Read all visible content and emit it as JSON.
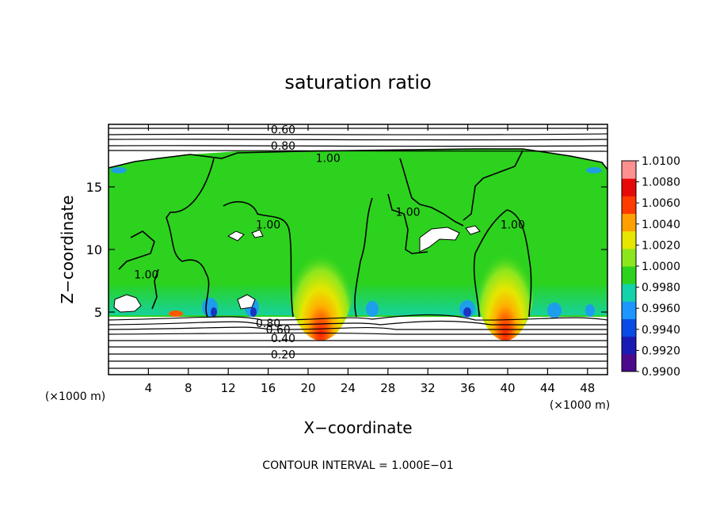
{
  "chart_data": {
    "type": "heatmap",
    "title": "saturation ratio",
    "xlabel": "X−coordinate",
    "ylabel": "Z−coordinate",
    "x_unit_left": "(×1000 m)",
    "x_unit_right": "(×1000 m)",
    "footer": "CONTOUR INTERVAL = 1.000E−01",
    "xlim": [
      0,
      50
    ],
    "ylim": [
      0,
      20
    ],
    "x_ticks": [
      4,
      8,
      12,
      16,
      20,
      24,
      28,
      32,
      36,
      40,
      44,
      48
    ],
    "x_tick_labels": [
      "4",
      "8",
      "12",
      "16",
      "20",
      "24",
      "28",
      "32",
      "36",
      "40",
      "44",
      "48"
    ],
    "y_ticks": [
      5,
      10,
      15
    ],
    "y_tick_labels": [
      "5",
      "10",
      "15"
    ],
    "colorbar": {
      "min": 0.99,
      "max": 1.01,
      "labels": [
        "1.0100",
        "1.0080",
        "1.0060",
        "1.0040",
        "1.0020",
        "1.0000",
        "0.9980",
        "0.9960",
        "0.9940",
        "0.9920",
        "0.9900"
      ],
      "colors": [
        "#4b0a8c",
        "#1a1ab4",
        "#0a4be6",
        "#1e96ff",
        "#14d2aa",
        "#2dd21e",
        "#8ce61e",
        "#e6e600",
        "#ffa000",
        "#ff3c00",
        "#e60a0a",
        "#ff9090"
      ]
    },
    "contour_labels": [
      {
        "text": "0.60",
        "x": 17.5,
        "y": 19.6
      },
      {
        "text": "0.80",
        "x": 17.5,
        "y": 18.3
      },
      {
        "text": "1.00",
        "x": 22.0,
        "y": 17.3
      },
      {
        "text": "1.00",
        "x": 30.0,
        "y": 13.0
      },
      {
        "text": "1.00",
        "x": 40.5,
        "y": 12.0
      },
      {
        "text": "1.00",
        "x": 16.0,
        "y": 12.0
      },
      {
        "text": "1.00",
        "x": 3.8,
        "y": 8.0
      },
      {
        "text": "0.80",
        "x": 16.0,
        "y": 4.1
      },
      {
        "text": "0.60",
        "x": 17.0,
        "y": 3.6
      },
      {
        "text": "0.40",
        "x": 17.5,
        "y": 2.9
      },
      {
        "text": "0.20",
        "x": 17.5,
        "y": 1.6
      }
    ],
    "warm_plumes_x": [
      21.5,
      39.5
    ]
  }
}
